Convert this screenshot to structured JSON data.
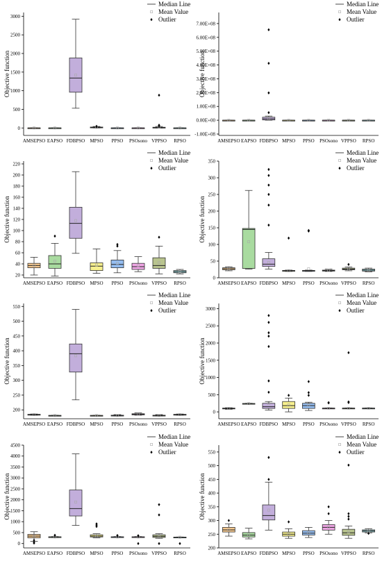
{
  "legend": {
    "median_label": "Median Line",
    "mean_label": "Mean Value",
    "outlier_label": "Outlier",
    "placement": "top-right"
  },
  "colors": {
    "AMSEPSO": "#f7c98e",
    "EAPSO": "#a9dba0",
    "FDBPSO": "#c2aedb",
    "MPSO": "#f7f08e",
    "PPSO": "#94bdf0",
    "PSOsono": "#f0a6e6",
    "VPPSO": "#b9c48e",
    "RPSO": "#94d2d6",
    "axis": "#000000",
    "mean_marker": "#aaaaaa"
  },
  "chart_data": [
    {
      "type": "box",
      "ylabel": "Objective function",
      "ylim": [
        -200,
        3100
      ],
      "yticks": [
        0,
        500,
        1000,
        1500,
        2000,
        2500,
        3000
      ],
      "tick_labels": [
        "0",
        "500",
        "1000",
        "1500",
        "2000",
        "2500",
        "3000"
      ],
      "categories": [
        "AMSEPSO",
        "EAPSO",
        "FDBPSO",
        "MPSO",
        "PPSO",
        "PSOsono",
        "VPPSO",
        "RPSO"
      ],
      "boxes": [
        {
          "min": -5,
          "q1": -3,
          "median": 0,
          "q3": 3,
          "max": 5,
          "mean": 0,
          "outliers": []
        },
        {
          "min": -5,
          "q1": -3,
          "median": 0,
          "q3": 3,
          "max": 5,
          "mean": 0,
          "outliers": []
        },
        {
          "min": 530,
          "q1": 960,
          "median": 1340,
          "q3": 1880,
          "max": 2920,
          "mean": 1420,
          "outliers": []
        },
        {
          "min": 0,
          "q1": 5,
          "median": 15,
          "q3": 25,
          "max": 40,
          "mean": 17,
          "outliers": [
            45
          ]
        },
        {
          "min": -5,
          "q1": -3,
          "median": 0,
          "q3": 3,
          "max": 5,
          "mean": 0,
          "outliers": []
        },
        {
          "min": -5,
          "q1": -3,
          "median": 0,
          "q3": 3,
          "max": 5,
          "mean": 0,
          "outliers": []
        },
        {
          "min": 0,
          "q1": 2,
          "median": 8,
          "q3": 20,
          "max": 40,
          "mean": 25,
          "outliers": [
            880,
            75,
            55
          ]
        },
        {
          "min": -5,
          "q1": -3,
          "median": 0,
          "q3": 3,
          "max": 5,
          "mean": 0,
          "outliers": []
        }
      ]
    },
    {
      "type": "box",
      "ylabel": "Objective function",
      "ylim": [
        -110000000.0,
        780000000.0
      ],
      "yticks": [
        -100000000.0,
        0,
        100000000.0,
        200000000.0,
        300000000.0,
        400000000.0,
        500000000.0,
        600000000.0,
        700000000.0
      ],
      "tick_labels": [
        "-1.00E+08",
        "0.00E+00",
        "1.00E+08",
        "2.00E+08",
        "3.00E+08",
        "4.00E+08",
        "5.00E+08",
        "6.00E+08",
        "7.00E+08"
      ],
      "categories": [
        "AMSEPSO",
        "EAPSO",
        "FDBPSO",
        "MPSO",
        "PPSO",
        "PSOsono",
        "VPPSO",
        "RPSO"
      ],
      "boxes": [
        {
          "min": 0,
          "q1": 0,
          "median": 0,
          "q3": 0,
          "max": 0,
          "mean": 0,
          "outliers": []
        },
        {
          "min": 0,
          "q1": 0,
          "median": 0,
          "q3": 0,
          "max": 0,
          "mean": 0,
          "outliers": []
        },
        {
          "min": 0,
          "q1": 2000000.0,
          "median": 10000000.0,
          "q3": 22000000.0,
          "max": 30000000.0,
          "mean": 12000000.0,
          "outliers": [
            655000000.0,
            412000000.0,
            198000000.0,
            55000000.0
          ]
        },
        {
          "min": 0,
          "q1": 0,
          "median": 0,
          "q3": 0,
          "max": 0,
          "mean": 0,
          "outliers": []
        },
        {
          "min": 0,
          "q1": 0,
          "median": 0,
          "q3": 0,
          "max": 0,
          "mean": 0,
          "outliers": []
        },
        {
          "min": 0,
          "q1": 0,
          "median": 0,
          "q3": 0,
          "max": 0,
          "mean": 0,
          "outliers": []
        },
        {
          "min": 0,
          "q1": 0,
          "median": 0,
          "q3": 0,
          "max": 0,
          "mean": 0,
          "outliers": []
        },
        {
          "min": 0,
          "q1": 0,
          "median": 0,
          "q3": 0,
          "max": 0,
          "mean": 0,
          "outliers": []
        }
      ]
    },
    {
      "type": "box",
      "ylabel": "Objective function",
      "ylim": [
        15,
        225
      ],
      "yticks": [
        20,
        40,
        60,
        80,
        100,
        120,
        140,
        160,
        180,
        200,
        220
      ],
      "tick_labels": [
        "20",
        "40",
        "60",
        "80",
        "100",
        "120",
        "140",
        "160",
        "180",
        "200",
        "220"
      ],
      "categories": [
        "AMSEPSO",
        "EAPSO",
        "FDBPSO",
        "MPSO",
        "PPSO",
        "PSOsono",
        "VPPSO",
        "RPSO"
      ],
      "boxes": [
        {
          "min": 20,
          "q1": 33,
          "median": 37,
          "q3": 41,
          "max": 52,
          "mean": 37,
          "outliers": []
        },
        {
          "min": 18,
          "q1": 32,
          "median": 40,
          "q3": 55,
          "max": 77,
          "mean": 45,
          "outliers": [
            90
          ]
        },
        {
          "min": 59,
          "q1": 86,
          "median": 113,
          "q3": 142,
          "max": 206,
          "mean": 118,
          "outliers": []
        },
        {
          "min": 23,
          "q1": 28,
          "median": 36,
          "q3": 42,
          "max": 67,
          "mean": 38,
          "outliers": []
        },
        {
          "min": 24,
          "q1": 33,
          "median": 39,
          "q3": 47,
          "max": 64,
          "mean": 41,
          "outliers": [
            72,
            75
          ]
        },
        {
          "min": 26,
          "q1": 30,
          "median": 35,
          "q3": 41,
          "max": 53,
          "mean": 37,
          "outliers": []
        },
        {
          "min": 22,
          "q1": 32,
          "median": 37,
          "q3": 51,
          "max": 72,
          "mean": 42,
          "outliers": [
            88
          ]
        },
        {
          "min": 22,
          "q1": 24,
          "median": 26,
          "q3": 28,
          "max": 30,
          "mean": 26,
          "outliers": []
        }
      ]
    },
    {
      "type": "box",
      "ylabel": "Objective function",
      "ylim": [
        0,
        350
      ],
      "yticks": [
        0,
        50,
        100,
        150,
        200,
        250,
        300,
        350
      ],
      "tick_labels": [
        "0",
        "50",
        "100",
        "150",
        "200",
        "250",
        "300",
        "350"
      ],
      "categories": [
        "AMSEPSO",
        "EAPSO",
        "FDBPSO",
        "MPSO",
        "PPSO",
        "PSOsono",
        "VPPSO",
        "RPSO"
      ],
      "boxes": [
        {
          "min": 21,
          "q1": 24,
          "median": 27,
          "q3": 30,
          "max": 33,
          "mean": 27,
          "outliers": []
        },
        {
          "min": 26,
          "q1": 28,
          "median": 145,
          "q3": 148,
          "max": 262,
          "mean": 108,
          "outliers": []
        },
        {
          "min": 26,
          "q1": 34,
          "median": 41,
          "q3": 57,
          "max": 76,
          "mean": 46,
          "outliers": [
            325,
            307,
            278,
            250,
            218,
            158
          ]
        },
        {
          "min": 19,
          "q1": 20,
          "median": 21,
          "q3": 22,
          "max": 23,
          "mean": 21,
          "outliers": [
            119
          ]
        },
        {
          "min": 19,
          "q1": 20,
          "median": 21,
          "q3": 22,
          "max": 23,
          "mean": 27,
          "outliers": [
            140,
            142
          ]
        },
        {
          "min": 19,
          "q1": 20,
          "median": 22,
          "q3": 23,
          "max": 26,
          "mean": 22,
          "outliers": []
        },
        {
          "min": 21,
          "q1": 24,
          "median": 26,
          "q3": 29,
          "max": 32,
          "mean": 27,
          "outliers": [
            40
          ]
        },
        {
          "min": 18,
          "q1": 20,
          "median": 23,
          "q3": 26,
          "max": 29,
          "mean": 23,
          "outliers": []
        }
      ]
    },
    {
      "type": "box",
      "ylabel": "Objective function",
      "ylim": [
        170,
        560
      ],
      "yticks": [
        200,
        250,
        300,
        350,
        400,
        450,
        500,
        550
      ],
      "tick_labels": [
        "200",
        "250",
        "300",
        "350",
        "400",
        "450",
        "500",
        "550"
      ],
      "categories": [
        "AMSEPSO",
        "EAPSO",
        "FDBPSO",
        "MPSO",
        "PPSO",
        "PSOsono",
        "VPPSO",
        "RPSO"
      ],
      "boxes": [
        {
          "min": 182,
          "q1": 183,
          "median": 184,
          "q3": 185,
          "max": 186,
          "mean": 184,
          "outliers": []
        },
        {
          "min": 180,
          "q1": 180.5,
          "median": 181,
          "q3": 181.5,
          "max": 182,
          "mean": 181,
          "outliers": []
        },
        {
          "min": 234,
          "q1": 328,
          "median": 390,
          "q3": 423,
          "max": 540,
          "mean": 383,
          "outliers": []
        },
        {
          "min": 180,
          "q1": 180.5,
          "median": 181,
          "q3": 181.5,
          "max": 182,
          "mean": 181,
          "outliers": []
        },
        {
          "min": 179,
          "q1": 180,
          "median": 181,
          "q3": 182,
          "max": 184,
          "mean": 181,
          "outliers": []
        },
        {
          "min": 182,
          "q1": 183,
          "median": 185,
          "q3": 187,
          "max": 190,
          "mean": 185,
          "outliers": []
        },
        {
          "min": 179,
          "q1": 180,
          "median": 181,
          "q3": 182,
          "max": 184,
          "mean": 181,
          "outliers": []
        },
        {
          "min": 182,
          "q1": 183,
          "median": 184,
          "q3": 185,
          "max": 186,
          "mean": 184,
          "outliers": []
        }
      ]
    },
    {
      "type": "box",
      "ylabel": "Objective function",
      "ylim": [
        -200,
        3150
      ],
      "yticks": [
        0,
        500,
        1000,
        1500,
        2000,
        2500,
        3000
      ],
      "tick_labels": [
        "0",
        "500",
        "1000",
        "1500",
        "2000",
        "2500",
        "3000"
      ],
      "categories": [
        "AMSEPSO",
        "EAPSO",
        "FDBPSO",
        "MPSO",
        "PPSO",
        "PSOsono",
        "VPPSO",
        "RPSO"
      ],
      "boxes": [
        {
          "min": 75,
          "q1": 90,
          "median": 100,
          "q3": 110,
          "max": 120,
          "mean": 100,
          "outliers": []
        },
        {
          "min": 230,
          "q1": 235,
          "median": 240,
          "q3": 245,
          "max": 250,
          "mean": 240,
          "outliers": []
        },
        {
          "min": 50,
          "q1": 100,
          "median": 150,
          "q3": 250,
          "max": 300,
          "mean": 240,
          "outliers": [
            2800,
            2600,
            2300,
            2200,
            1900,
            900,
            570
          ]
        },
        {
          "min": 0,
          "q1": 100,
          "median": 180,
          "q3": 300,
          "max": 400,
          "mean": 200,
          "outliers": [
            480
          ]
        },
        {
          "min": 40,
          "q1": 100,
          "median": 180,
          "q3": 250,
          "max": 280,
          "mean": 200,
          "outliers": [
            880,
            560,
            480
          ]
        },
        {
          "min": 95,
          "q1": 100,
          "median": 105,
          "q3": 110,
          "max": 115,
          "mean": 105,
          "outliers": [
            260,
            270
          ]
        },
        {
          "min": 95,
          "q1": 100,
          "median": 105,
          "q3": 110,
          "max": 115,
          "mean": 105,
          "outliers": [
            1720,
            290,
            270
          ]
        },
        {
          "min": 95,
          "q1": 100,
          "median": 105,
          "q3": 110,
          "max": 115,
          "mean": 105,
          "outliers": []
        }
      ]
    },
    {
      "type": "box",
      "ylabel": "Objective function",
      "ylim": [
        -200,
        4500
      ],
      "yticks": [
        0,
        500,
        1000,
        1500,
        2000,
        2500,
        3000,
        3500,
        4000,
        4500
      ],
      "tick_labels": [
        "0",
        "500",
        "1000",
        "1500",
        "2000",
        "2500",
        "3000",
        "3500",
        "4000",
        "4500"
      ],
      "categories": [
        "AMSEPSO",
        "EAPSO",
        "FDBPSO",
        "MPSO",
        "PPSO",
        "PSOsono",
        "VPPSO",
        "RPSO"
      ],
      "boxes": [
        {
          "min": 100,
          "q1": 260,
          "median": 340,
          "q3": 420,
          "max": 540,
          "mean": 340,
          "outliers": [
            20,
            60,
            150
          ]
        },
        {
          "min": 270,
          "q1": 285,
          "median": 300,
          "q3": 310,
          "max": 320,
          "mean": 300,
          "outliers": [
            380
          ]
        },
        {
          "min": 830,
          "q1": 1260,
          "median": 1600,
          "q3": 2450,
          "max": 4100,
          "mean": 1900,
          "outliers": []
        },
        {
          "min": 260,
          "q1": 300,
          "median": 340,
          "q3": 400,
          "max": 450,
          "mean": 360,
          "outliers": [
            900,
            840,
            780
          ]
        },
        {
          "min": 280,
          "q1": 290,
          "median": 300,
          "q3": 310,
          "max": 320,
          "mean": 300,
          "outliers": [
            370
          ]
        },
        {
          "min": 280,
          "q1": 290,
          "median": 300,
          "q3": 310,
          "max": 320,
          "mean": 300,
          "outliers": [
            0,
            360
          ]
        },
        {
          "min": 240,
          "q1": 280,
          "median": 330,
          "q3": 400,
          "max": 450,
          "mean": 340,
          "outliers": [
            1780,
            1310,
            0
          ]
        },
        {
          "min": 280,
          "q1": 285,
          "median": 290,
          "q3": 295,
          "max": 300,
          "mean": 290,
          "outliers": [
            0
          ]
        }
      ]
    },
    {
      "type": "box",
      "ylabel": "Objective function",
      "ylim": [
        200,
        575
      ],
      "yticks": [
        200,
        250,
        300,
        350,
        400,
        450,
        500,
        550
      ],
      "tick_labels": [
        "200",
        "250",
        "300",
        "350",
        "400",
        "450",
        "500",
        "550"
      ],
      "categories": [
        "AMSEPSO",
        "EAPSO",
        "FDBPSO",
        "MPSO",
        "PPSO",
        "PSOsono",
        "VPPSO",
        "RPSO"
      ],
      "boxes": [
        {
          "min": 243,
          "q1": 258,
          "median": 266,
          "q3": 275,
          "max": 288,
          "mean": 266,
          "outliers": [
            300
          ]
        },
        {
          "min": 233,
          "q1": 240,
          "median": 247,
          "q3": 256,
          "max": 272,
          "mean": 249,
          "outliers": []
        },
        {
          "min": 265,
          "q1": 302,
          "median": 318,
          "q3": 357,
          "max": 440,
          "mean": 338,
          "outliers": [
            530,
            450
          ]
        },
        {
          "min": 235,
          "q1": 243,
          "median": 250,
          "q3": 258,
          "max": 270,
          "mean": 251,
          "outliers": [
            295
          ]
        },
        {
          "min": 238,
          "q1": 247,
          "median": 254,
          "q3": 263,
          "max": 275,
          "mean": 255,
          "outliers": []
        },
        {
          "min": 250,
          "q1": 265,
          "median": 275,
          "q3": 285,
          "max": 300,
          "mean": 276,
          "outliers": [
            350,
            325
          ]
        },
        {
          "min": 235,
          "q1": 246,
          "median": 255,
          "q3": 268,
          "max": 280,
          "mean": 259,
          "outliers": [
            502,
            325,
            315,
            305
          ]
        },
        {
          "min": 255,
          "q1": 258,
          "median": 262,
          "q3": 266,
          "max": 270,
          "mean": 262,
          "outliers": [
            253
          ]
        }
      ]
    }
  ]
}
